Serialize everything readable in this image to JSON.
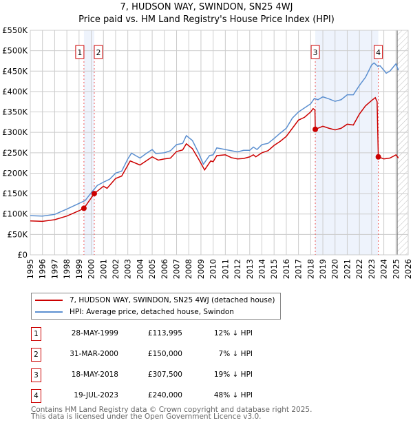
{
  "title": "7, HUDSON WAY, SWINDON, SN25 4WJ",
  "subtitle": "Price paid vs. HM Land Registry's House Price Index (HPI)",
  "chart_data": {
    "type": "line",
    "ylim": [
      0,
      550000
    ],
    "xlim": [
      1995,
      2026
    ],
    "yticks": [
      {
        "v": 0,
        "label": "£0"
      },
      {
        "v": 50000,
        "label": "£50K"
      },
      {
        "v": 100000,
        "label": "£100K"
      },
      {
        "v": 150000,
        "label": "£150K"
      },
      {
        "v": 200000,
        "label": "£200K"
      },
      {
        "v": 250000,
        "label": "£250K"
      },
      {
        "v": 300000,
        "label": "£300K"
      },
      {
        "v": 350000,
        "label": "£350K"
      },
      {
        "v": 400000,
        "label": "£400K"
      },
      {
        "v": 450000,
        "label": "£450K"
      },
      {
        "v": 500000,
        "label": "£500K"
      },
      {
        "v": 550000,
        "label": "£550K"
      }
    ],
    "xticks": [
      1995,
      1996,
      1997,
      1998,
      1999,
      2000,
      2001,
      2002,
      2003,
      2004,
      2005,
      2006,
      2007,
      2008,
      2009,
      2010,
      2011,
      2012,
      2013,
      2014,
      2015,
      2016,
      2017,
      2018,
      2019,
      2020,
      2021,
      2022,
      2023,
      2024,
      2025,
      2026
    ],
    "shaded": [
      [
        1999.4,
        2000.25
      ],
      [
        2018.38,
        2023.55
      ]
    ],
    "future_from": 2025.1,
    "series": [
      {
        "name": "HPI: Average price, detached house, Swindon",
        "color": "#5b8fd0",
        "points": [
          [
            1995,
            96
          ],
          [
            1996,
            95
          ],
          [
            1997,
            99
          ],
          [
            1998,
            112
          ],
          [
            1999,
            126
          ],
          [
            1999.5,
            133
          ],
          [
            2000,
            152
          ],
          [
            2000.5,
            170
          ],
          [
            2001,
            178
          ],
          [
            2001.5,
            185
          ],
          [
            2002,
            200
          ],
          [
            2002.5,
            205
          ],
          [
            2003,
            235
          ],
          [
            2003.3,
            249
          ],
          [
            2004,
            237
          ],
          [
            2004.5,
            248
          ],
          [
            2005,
            258
          ],
          [
            2005.3,
            248
          ],
          [
            2006,
            250
          ],
          [
            2006.5,
            255
          ],
          [
            2007,
            270
          ],
          [
            2007.5,
            273
          ],
          [
            2007.8,
            292
          ],
          [
            2008.3,
            280
          ],
          [
            2008.8,
            250
          ],
          [
            2009.2,
            222
          ],
          [
            2009.7,
            243
          ],
          [
            2010,
            245
          ],
          [
            2010.3,
            262
          ],
          [
            2011,
            258
          ],
          [
            2011.5,
            255
          ],
          [
            2012,
            252
          ],
          [
            2012.5,
            256
          ],
          [
            2013,
            256
          ],
          [
            2013.3,
            264
          ],
          [
            2013.6,
            258
          ],
          [
            2014,
            270
          ],
          [
            2014.5,
            273
          ],
          [
            2015,
            285
          ],
          [
            2015.5,
            298
          ],
          [
            2016,
            310
          ],
          [
            2016.5,
            335
          ],
          [
            2017,
            350
          ],
          [
            2017.5,
            360
          ],
          [
            2018,
            370
          ],
          [
            2018.3,
            383
          ],
          [
            2018.6,
            380
          ],
          [
            2019,
            387
          ],
          [
            2019.5,
            382
          ],
          [
            2020,
            376
          ],
          [
            2020.5,
            380
          ],
          [
            2021,
            392
          ],
          [
            2021.5,
            392
          ],
          [
            2022,
            415
          ],
          [
            2022.5,
            435
          ],
          [
            2023,
            465
          ],
          [
            2023.2,
            470
          ],
          [
            2023.5,
            462
          ],
          [
            2023.7,
            463
          ],
          [
            2024.2,
            445
          ],
          [
            2024.5,
            450
          ],
          [
            2025,
            468
          ],
          [
            2025.2,
            452
          ]
        ]
      },
      {
        "name": "7, HUDSON WAY, SWINDON, SN25 4WJ (detached house)",
        "color": "#cc0000",
        "points": [
          [
            1995,
            83
          ],
          [
            1996,
            82
          ],
          [
            1997,
            86
          ],
          [
            1998,
            95
          ],
          [
            1999,
            108
          ],
          [
            1999.4,
            114
          ],
          [
            2000.25,
            150
          ],
          [
            2001,
            168
          ],
          [
            2001.3,
            163
          ],
          [
            2002,
            187
          ],
          [
            2002.5,
            193
          ],
          [
            2003.2,
            230
          ],
          [
            2004,
            220
          ],
          [
            2005,
            240
          ],
          [
            2005.5,
            232
          ],
          [
            2006,
            235
          ],
          [
            2006.5,
            237
          ],
          [
            2007,
            253
          ],
          [
            2007.5,
            257
          ],
          [
            2007.8,
            272
          ],
          [
            2008.3,
            260
          ],
          [
            2008.8,
            235
          ],
          [
            2009.3,
            208
          ],
          [
            2009.8,
            230
          ],
          [
            2010,
            228
          ],
          [
            2010.3,
            243
          ],
          [
            2011,
            245
          ],
          [
            2011.5,
            238
          ],
          [
            2012,
            235
          ],
          [
            2012.5,
            236
          ],
          [
            2013,
            240
          ],
          [
            2013.3,
            245
          ],
          [
            2013.5,
            240
          ],
          [
            2014,
            250
          ],
          [
            2014.5,
            255
          ],
          [
            2015,
            268
          ],
          [
            2015.5,
            278
          ],
          [
            2016,
            290
          ],
          [
            2016.5,
            310
          ],
          [
            2017,
            330
          ],
          [
            2017.5,
            337
          ],
          [
            2018,
            350
          ],
          [
            2018.2,
            358
          ],
          [
            2018.35,
            355
          ],
          [
            2018.38,
            307.5
          ],
          [
            2019,
            315
          ],
          [
            2019.5,
            310
          ],
          [
            2020,
            306
          ],
          [
            2020.5,
            310
          ],
          [
            2021,
            320
          ],
          [
            2021.5,
            318
          ],
          [
            2022,
            345
          ],
          [
            2022.5,
            365
          ],
          [
            2023,
            378
          ],
          [
            2023.3,
            385
          ],
          [
            2023.45,
            375
          ],
          [
            2023.55,
            240
          ],
          [
            2024,
            235
          ],
          [
            2024.5,
            237
          ],
          [
            2025,
            245
          ],
          [
            2025.2,
            237
          ]
        ]
      }
    ],
    "sales": [
      {
        "label": "1",
        "x": 1999.4,
        "y": 113995
      },
      {
        "label": "2",
        "x": 2000.25,
        "y": 150000
      },
      {
        "label": "3",
        "x": 2018.38,
        "y": 307500
      },
      {
        "label": "4",
        "x": 2023.55,
        "y": 240000
      }
    ]
  },
  "legend": {
    "property": "7, HUDSON WAY, SWINDON, SN25 4WJ (detached house)",
    "hpi": "HPI: Average price, detached house, Swindon"
  },
  "transactions": [
    {
      "num": "1",
      "date": "28-MAY-1999",
      "price": "£113,995",
      "pct": "12% ↓ HPI"
    },
    {
      "num": "2",
      "date": "31-MAR-2000",
      "price": "£150,000",
      "pct": " 7% ↓ HPI"
    },
    {
      "num": "3",
      "date": "18-MAY-2018",
      "price": "£307,500",
      "pct": "19% ↓ HPI"
    },
    {
      "num": "4",
      "date": "19-JUL-2023",
      "price": "£240,000",
      "pct": "48% ↓ HPI"
    }
  ],
  "footer": {
    "line1": "Contains HM Land Registry data © Crown copyright and database right 2025.",
    "line2": "This data is licensed under the Open Government Licence v3.0."
  }
}
